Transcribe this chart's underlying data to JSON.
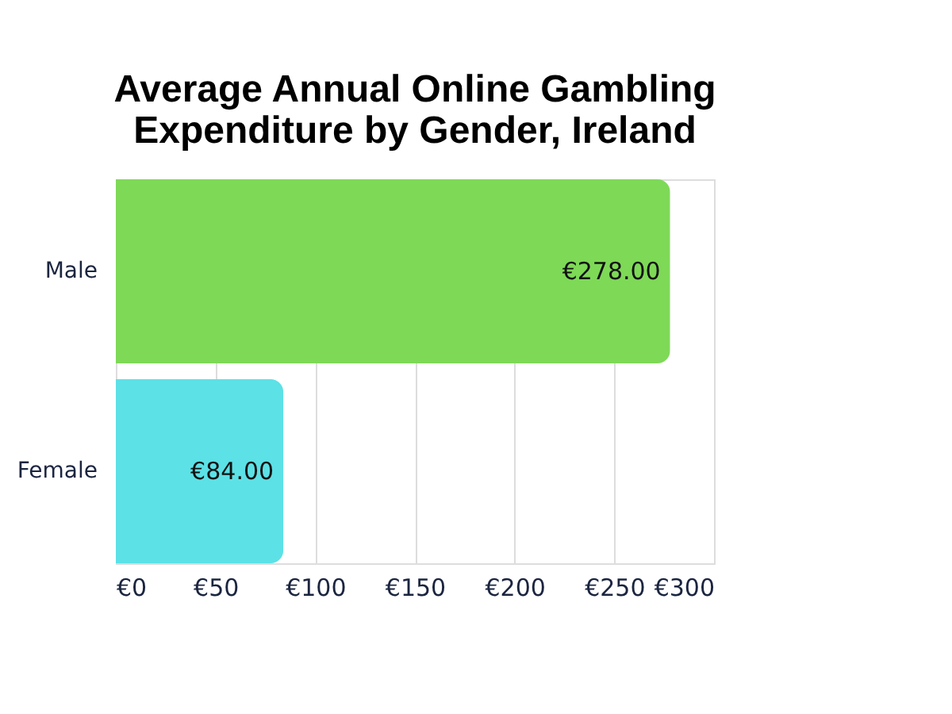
{
  "chart_data": {
    "type": "bar",
    "orientation": "horizontal",
    "title": [
      "Average Annual Online Gambling",
      "Expenditure by Gender, Ireland"
    ],
    "categories": [
      "Male",
      "Female"
    ],
    "values": [
      278,
      84
    ],
    "colors": [
      "#7ed957",
      "#5ce1e6"
    ],
    "value_labels": [
      "€278.00",
      "€84.00"
    ],
    "xlim": [
      0,
      300
    ],
    "xticks": [
      {
        "value": 0,
        "label": "€0"
      },
      {
        "value": 50,
        "label": "€50"
      },
      {
        "value": 100,
        "label": "€100"
      },
      {
        "value": 150,
        "label": "€150"
      },
      {
        "value": 200,
        "label": "€200"
      },
      {
        "value": 250,
        "label": "€250"
      },
      {
        "value": 300,
        "label": "€300"
      }
    ],
    "grid": "x"
  }
}
